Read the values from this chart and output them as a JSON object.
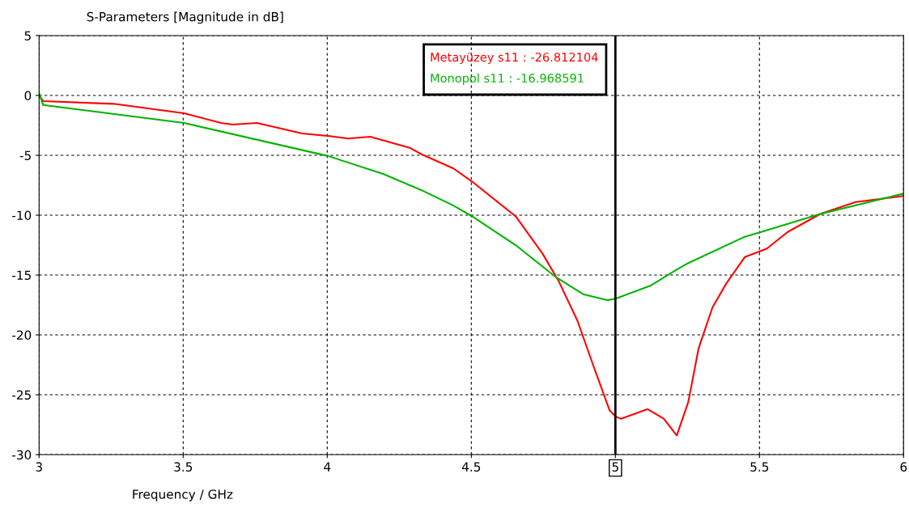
{
  "chart_data": {
    "type": "line",
    "title": "S-Parameters [Magnitude in dB]",
    "xlabel": "Frequency / GHz",
    "xlim": [
      3,
      6
    ],
    "xticks": [
      3,
      3.5,
      4,
      4.5,
      5,
      5.5,
      6
    ],
    "ylim": [
      -30,
      5
    ],
    "yticks": [
      -30,
      -25,
      -20,
      -15,
      -10,
      -5,
      0,
      5
    ],
    "grid": true,
    "line_style": "solid",
    "series": [
      {
        "color": "#ff0000",
        "x": [
          3.0,
          3.014,
          3.258,
          3.503,
          3.632,
          3.671,
          3.756,
          3.913,
          4.008,
          4.073,
          4.149,
          4.289,
          4.326,
          4.438,
          4.503,
          4.654,
          4.747,
          4.803,
          4.868,
          4.924,
          4.98,
          5.0,
          5.019,
          5.112,
          5.168,
          5.213,
          5.253,
          5.289,
          5.337,
          5.385,
          5.449,
          5.525,
          5.598,
          5.711,
          5.834,
          6.0
        ],
        "values": [
          0.0,
          -0.47,
          -0.7,
          -1.49,
          -2.3,
          -2.43,
          -2.3,
          -3.18,
          -3.4,
          -3.6,
          -3.45,
          -4.4,
          -4.9,
          -6.1,
          -7.2,
          -10.1,
          -13.2,
          -15.5,
          -18.8,
          -22.6,
          -26.3,
          -26.81,
          -27.0,
          -26.2,
          -27.0,
          -28.4,
          -25.6,
          -21.1,
          -17.7,
          -15.7,
          -13.5,
          -12.8,
          -11.4,
          -9.9,
          -8.9,
          -8.4
        ]
      },
      {
        "color": "#00b400",
        "x": [
          3.0,
          3.014,
          3.503,
          4.003,
          4.194,
          4.326,
          4.438,
          4.503,
          4.654,
          4.795,
          4.888,
          4.972,
          5.0,
          5.121,
          5.216,
          5.253,
          5.449,
          5.506,
          5.711,
          6.0
        ],
        "values": [
          0.2,
          -0.8,
          -2.3,
          -5.06,
          -6.55,
          -7.9,
          -9.2,
          -10.1,
          -12.5,
          -15.2,
          -16.6,
          -17.1,
          -16.97,
          -15.9,
          -14.5,
          -14.0,
          -11.8,
          -11.4,
          -9.9,
          -8.2
        ]
      }
    ],
    "ref_lines": [
      {
        "axis": "x",
        "value": 5,
        "color": "#000000",
        "line_style": "solid"
      }
    ],
    "annotations": [
      "Metayüzey s11 : -26.812104",
      "Monopol s11 : -16.968591"
    ]
  }
}
